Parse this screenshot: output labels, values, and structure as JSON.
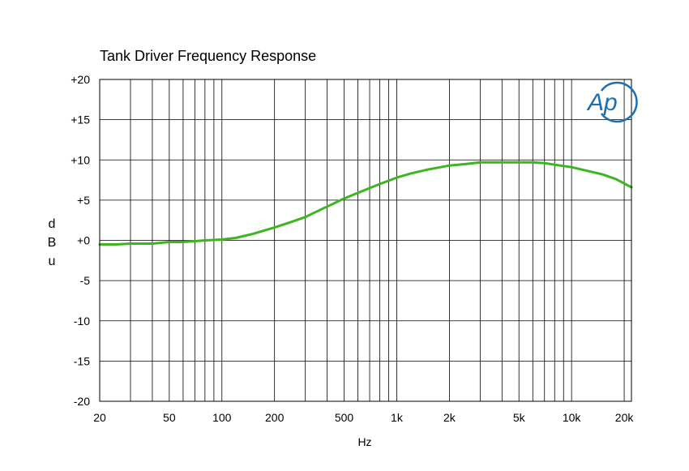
{
  "chart_data": {
    "type": "line",
    "title": "Tank Driver Frequency Response",
    "xlabel": "Hz",
    "ylabel": "dBu",
    "x_scale": "log",
    "xlim": [
      20,
      22000
    ],
    "ylim": [
      -20,
      20
    ],
    "grid": true,
    "x_tick_labels": [
      {
        "value": 20,
        "label": "20"
      },
      {
        "value": 50,
        "label": "50"
      },
      {
        "value": 100,
        "label": "100"
      },
      {
        "value": 200,
        "label": "200"
      },
      {
        "value": 500,
        "label": "500"
      },
      {
        "value": 1000,
        "label": "1k"
      },
      {
        "value": 2000,
        "label": "2k"
      },
      {
        "value": 5000,
        "label": "5k"
      },
      {
        "value": 10000,
        "label": "10k"
      },
      {
        "value": 20000,
        "label": "20k"
      }
    ],
    "y_ticks": [
      20,
      15,
      10,
      5,
      0,
      -5,
      -10,
      -15,
      -20
    ],
    "y_tick_labels": [
      "+20",
      "+15",
      "+10",
      "+5",
      "+0",
      "-5",
      "-10",
      "-15",
      "-20"
    ],
    "series": [
      {
        "color": "#3cb521",
        "x": [
          20,
          25,
          30,
          40,
          50,
          60,
          70,
          80,
          100,
          120,
          150,
          200,
          250,
          300,
          400,
          500,
          600,
          700,
          800,
          1000,
          1200,
          1500,
          2000,
          2500,
          3000,
          4000,
          5000,
          6000,
          7000,
          8000,
          10000,
          12000,
          15000,
          18000,
          22000
        ],
        "values": [
          -0.5,
          -0.5,
          -0.4,
          -0.4,
          -0.2,
          -0.2,
          -0.1,
          0.0,
          0.1,
          0.3,
          0.8,
          1.6,
          2.3,
          2.9,
          4.2,
          5.2,
          5.9,
          6.5,
          7.0,
          7.8,
          8.3,
          8.8,
          9.3,
          9.5,
          9.7,
          9.7,
          9.7,
          9.7,
          9.6,
          9.4,
          9.1,
          8.7,
          8.2,
          7.6,
          6.6
        ]
      }
    ]
  },
  "logo": {
    "text": "Ap",
    "color": "#1a6fb5"
  }
}
